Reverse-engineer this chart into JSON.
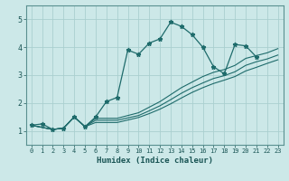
{
  "xlabel": "Humidex (Indice chaleur)",
  "xlim": [
    -0.5,
    23.5
  ],
  "ylim": [
    0.5,
    5.5
  ],
  "yticks": [
    1,
    2,
    3,
    4,
    5
  ],
  "xticks": [
    0,
    1,
    2,
    3,
    4,
    5,
    6,
    7,
    8,
    9,
    10,
    11,
    12,
    13,
    14,
    15,
    16,
    17,
    18,
    19,
    20,
    21,
    22,
    23
  ],
  "bg_color": "#cce8e8",
  "grid_color": "#aacfcf",
  "line_color": "#1e6b6b",
  "line0": {
    "x": [
      0,
      1,
      2,
      3,
      4,
      5,
      6,
      7,
      8,
      9,
      10,
      11,
      12,
      13,
      14,
      15,
      16,
      17,
      18,
      19,
      20,
      21
    ],
    "y": [
      1.2,
      1.25,
      1.05,
      1.1,
      1.5,
      1.15,
      1.5,
      2.05,
      2.2,
      3.9,
      3.75,
      4.15,
      4.3,
      4.9,
      4.75,
      4.45,
      4.0,
      3.3,
      3.05,
      4.1,
      4.05,
      3.65
    ]
  },
  "line1": {
    "x": [
      0,
      2,
      3,
      4,
      5,
      6,
      7,
      8,
      10,
      11,
      12,
      13,
      14,
      15,
      16,
      17,
      18,
      19,
      20,
      21,
      22,
      23
    ],
    "y": [
      1.2,
      1.05,
      1.1,
      1.5,
      1.15,
      1.45,
      1.45,
      1.45,
      1.65,
      1.85,
      2.05,
      2.3,
      2.55,
      2.75,
      2.95,
      3.1,
      3.2,
      3.35,
      3.6,
      3.7,
      3.8,
      3.95
    ]
  },
  "line2": {
    "x": [
      0,
      2,
      3,
      4,
      5,
      6,
      7,
      8,
      10,
      11,
      12,
      13,
      14,
      15,
      16,
      17,
      18,
      19,
      20,
      21,
      22,
      23
    ],
    "y": [
      1.2,
      1.05,
      1.1,
      1.5,
      1.15,
      1.38,
      1.38,
      1.38,
      1.55,
      1.72,
      1.9,
      2.12,
      2.35,
      2.55,
      2.72,
      2.88,
      2.98,
      3.12,
      3.35,
      3.48,
      3.58,
      3.72
    ]
  },
  "line3": {
    "x": [
      0,
      2,
      3,
      4,
      5,
      6,
      7,
      8,
      10,
      11,
      12,
      13,
      14,
      15,
      16,
      17,
      18,
      19,
      20,
      21,
      22,
      23
    ],
    "y": [
      1.2,
      1.05,
      1.1,
      1.5,
      1.15,
      1.3,
      1.3,
      1.3,
      1.48,
      1.62,
      1.78,
      1.97,
      2.18,
      2.38,
      2.55,
      2.7,
      2.82,
      2.95,
      3.15,
      3.28,
      3.42,
      3.55
    ]
  }
}
